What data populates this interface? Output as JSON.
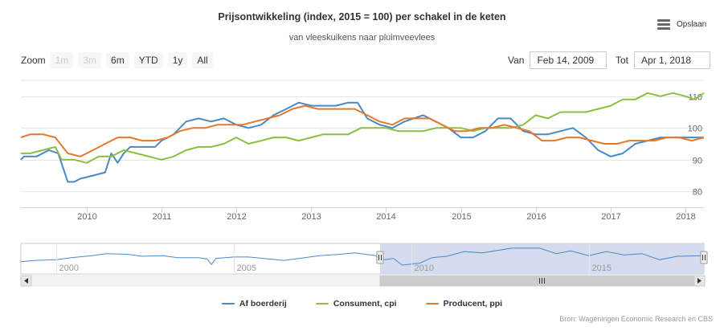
{
  "header": {
    "title": "Prijsontwikkeling (index, 2015 = 100) per schakel in de keten",
    "subtitle": "van vleeskuikens naar pluimveevlees",
    "menu_label": "Opslaan",
    "menu_icon": "hamburger-menu-icon"
  },
  "zoom": {
    "label": "Zoom",
    "buttons": [
      {
        "label": "1m",
        "state": "disabled"
      },
      {
        "label": "3m",
        "state": "disabled"
      },
      {
        "label": "6m",
        "state": "normal"
      },
      {
        "label": "YTD",
        "state": "normal"
      },
      {
        "label": "1y",
        "state": "normal"
      },
      {
        "label": "All",
        "state": "normal"
      }
    ]
  },
  "range": {
    "from_label": "Van",
    "from_value": "Feb 14, 2009",
    "to_label": "Tot",
    "to_value": "Apr 1, 2018"
  },
  "colors": {
    "farm": "#4a89c8",
    "consumer": "#8cbf3f",
    "producer": "#e5792a",
    "navigator_mask": "#ccd6eb",
    "gridline": "#e6e6e6"
  },
  "chart_data": {
    "type": "line",
    "x_start": "2009-02-14",
    "x_end": "2018-04-01",
    "ylim": [
      75,
      115
    ],
    "y_ticks": [
      80,
      90,
      100,
      110
    ],
    "x_ticks": [
      {
        "date": "2010-01-01",
        "label": "2010"
      },
      {
        "date": "2011-01-01",
        "label": "2011"
      },
      {
        "date": "2012-01-01",
        "label": "2012"
      },
      {
        "date": "2013-01-01",
        "label": "2013"
      },
      {
        "date": "2014-01-01",
        "label": "2014"
      },
      {
        "date": "2015-01-01",
        "label": "2015"
      },
      {
        "date": "2016-01-01",
        "label": "2016"
      },
      {
        "date": "2017-01-01",
        "label": "2017"
      },
      {
        "date": "2018-01-01",
        "label": "2018"
      }
    ],
    "grid": true,
    "legend": "bottom-center",
    "series": [
      {
        "name": "Af boerderij",
        "points": [
          [
            "2009-02-14",
            90
          ],
          [
            "2009-03-01",
            91
          ],
          [
            "2009-05-01",
            91
          ],
          [
            "2009-07-01",
            93
          ],
          [
            "2009-08-15",
            92
          ],
          [
            "2009-10-01",
            83
          ],
          [
            "2009-11-01",
            83
          ],
          [
            "2009-12-01",
            84
          ],
          [
            "2010-02-01",
            85
          ],
          [
            "2010-04-01",
            86
          ],
          [
            "2010-05-01",
            92
          ],
          [
            "2010-06-01",
            89
          ],
          [
            "2010-07-01",
            92
          ],
          [
            "2010-08-01",
            94
          ],
          [
            "2010-10-01",
            94
          ],
          [
            "2010-12-01",
            94
          ],
          [
            "2011-01-01",
            96
          ],
          [
            "2011-03-01",
            98
          ],
          [
            "2011-05-01",
            102
          ],
          [
            "2011-07-01",
            103
          ],
          [
            "2011-09-01",
            102
          ],
          [
            "2011-11-01",
            103
          ],
          [
            "2012-01-01",
            101
          ],
          [
            "2012-03-01",
            100
          ],
          [
            "2012-05-01",
            101
          ],
          [
            "2012-07-01",
            104
          ],
          [
            "2012-09-01",
            106
          ],
          [
            "2012-11-01",
            108
          ],
          [
            "2013-01-01",
            107
          ],
          [
            "2013-03-01",
            107
          ],
          [
            "2013-05-01",
            107
          ],
          [
            "2013-07-01",
            108
          ],
          [
            "2013-08-15",
            108
          ],
          [
            "2013-10-01",
            103
          ],
          [
            "2013-12-01",
            101
          ],
          [
            "2014-02-01",
            100
          ],
          [
            "2014-04-01",
            102
          ],
          [
            "2014-07-01",
            104
          ],
          [
            "2014-09-01",
            102
          ],
          [
            "2014-11-01",
            100
          ],
          [
            "2015-01-01",
            97
          ],
          [
            "2015-03-01",
            97
          ],
          [
            "2015-05-01",
            99
          ],
          [
            "2015-07-01",
            103
          ],
          [
            "2015-09-01",
            103
          ],
          [
            "2015-11-01",
            99
          ],
          [
            "2016-01-01",
            98
          ],
          [
            "2016-03-01",
            98
          ],
          [
            "2016-05-01",
            99
          ],
          [
            "2016-07-01",
            100
          ],
          [
            "2016-09-01",
            97
          ],
          [
            "2016-11-01",
            93
          ],
          [
            "2017-01-01",
            91
          ],
          [
            "2017-03-01",
            92
          ],
          [
            "2017-05-01",
            95
          ],
          [
            "2017-07-01",
            96
          ],
          [
            "2017-09-01",
            97
          ],
          [
            "2017-11-01",
            97
          ],
          [
            "2018-01-01",
            97
          ],
          [
            "2018-04-01",
            97
          ]
        ]
      },
      {
        "name": "Consument, cpi",
        "points": [
          [
            "2009-02-14",
            92
          ],
          [
            "2009-04-01",
            92
          ],
          [
            "2009-06-01",
            93
          ],
          [
            "2009-08-01",
            94
          ],
          [
            "2009-09-01",
            90
          ],
          [
            "2009-11-01",
            90
          ],
          [
            "2010-01-01",
            89
          ],
          [
            "2010-03-01",
            91
          ],
          [
            "2010-05-01",
            91
          ],
          [
            "2010-07-01",
            93
          ],
          [
            "2010-09-01",
            92
          ],
          [
            "2010-11-01",
            91
          ],
          [
            "2011-01-01",
            90
          ],
          [
            "2011-03-01",
            91
          ],
          [
            "2011-05-01",
            93
          ],
          [
            "2011-07-01",
            94
          ],
          [
            "2011-09-01",
            94
          ],
          [
            "2011-11-01",
            95
          ],
          [
            "2012-01-01",
            97
          ],
          [
            "2012-03-01",
            95
          ],
          [
            "2012-05-01",
            96
          ],
          [
            "2012-07-01",
            97
          ],
          [
            "2012-09-01",
            97
          ],
          [
            "2012-11-01",
            96
          ],
          [
            "2013-01-01",
            97
          ],
          [
            "2013-03-01",
            98
          ],
          [
            "2013-05-01",
            98
          ],
          [
            "2013-07-01",
            98
          ],
          [
            "2013-09-01",
            100
          ],
          [
            "2013-11-01",
            100
          ],
          [
            "2014-01-01",
            100
          ],
          [
            "2014-03-01",
            99
          ],
          [
            "2014-05-01",
            99
          ],
          [
            "2014-07-01",
            99
          ],
          [
            "2014-09-01",
            100
          ],
          [
            "2014-11-01",
            100
          ],
          [
            "2015-01-01",
            100
          ],
          [
            "2015-03-01",
            99
          ],
          [
            "2015-05-01",
            100
          ],
          [
            "2015-07-01",
            100
          ],
          [
            "2015-09-01",
            100
          ],
          [
            "2015-11-01",
            101
          ],
          [
            "2016-01-01",
            104
          ],
          [
            "2016-03-01",
            103
          ],
          [
            "2016-05-01",
            105
          ],
          [
            "2016-07-01",
            105
          ],
          [
            "2016-09-01",
            105
          ],
          [
            "2016-11-01",
            106
          ],
          [
            "2017-01-01",
            107
          ],
          [
            "2017-03-01",
            109
          ],
          [
            "2017-05-01",
            109
          ],
          [
            "2017-07-01",
            111
          ],
          [
            "2017-09-01",
            110
          ],
          [
            "2017-11-01",
            111
          ],
          [
            "2018-01-01",
            110
          ],
          [
            "2018-02-15",
            109
          ],
          [
            "2018-04-01",
            111
          ]
        ]
      },
      {
        "name": "Producent, ppi",
        "points": [
          [
            "2009-02-14",
            97
          ],
          [
            "2009-04-01",
            98
          ],
          [
            "2009-06-01",
            98
          ],
          [
            "2009-08-01",
            97
          ],
          [
            "2009-10-01",
            92
          ],
          [
            "2009-12-01",
            91
          ],
          [
            "2010-02-01",
            93
          ],
          [
            "2010-04-01",
            95
          ],
          [
            "2010-06-01",
            97
          ],
          [
            "2010-08-01",
            97
          ],
          [
            "2010-10-01",
            96
          ],
          [
            "2010-12-01",
            96
          ],
          [
            "2011-02-01",
            97
          ],
          [
            "2011-04-01",
            99
          ],
          [
            "2011-06-01",
            100
          ],
          [
            "2011-08-01",
            100
          ],
          [
            "2011-10-01",
            101
          ],
          [
            "2011-12-01",
            101
          ],
          [
            "2012-02-01",
            101
          ],
          [
            "2012-04-01",
            102
          ],
          [
            "2012-06-01",
            103
          ],
          [
            "2012-08-01",
            104
          ],
          [
            "2012-10-01",
            106
          ],
          [
            "2012-12-01",
            107
          ],
          [
            "2013-02-01",
            106
          ],
          [
            "2013-04-01",
            106
          ],
          [
            "2013-06-01",
            106
          ],
          [
            "2013-08-01",
            106
          ],
          [
            "2013-10-01",
            104
          ],
          [
            "2013-12-01",
            102
          ],
          [
            "2014-02-01",
            101
          ],
          [
            "2014-04-01",
            103
          ],
          [
            "2014-06-01",
            103
          ],
          [
            "2014-08-01",
            103
          ],
          [
            "2014-10-01",
            101
          ],
          [
            "2014-12-01",
            99
          ],
          [
            "2015-02-01",
            99
          ],
          [
            "2015-04-01",
            100
          ],
          [
            "2015-06-01",
            100
          ],
          [
            "2015-08-01",
            101
          ],
          [
            "2015-10-01",
            100
          ],
          [
            "2015-12-01",
            99
          ],
          [
            "2016-02-01",
            96
          ],
          [
            "2016-04-01",
            96
          ],
          [
            "2016-06-01",
            97
          ],
          [
            "2016-08-01",
            97
          ],
          [
            "2016-10-01",
            96
          ],
          [
            "2016-12-01",
            95
          ],
          [
            "2017-02-01",
            95
          ],
          [
            "2017-04-01",
            96
          ],
          [
            "2017-06-01",
            96
          ],
          [
            "2017-08-01",
            96
          ],
          [
            "2017-10-01",
            97
          ],
          [
            "2017-12-01",
            97
          ],
          [
            "2018-02-01",
            96
          ],
          [
            "2018-04-01",
            97
          ]
        ]
      }
    ],
    "navigator": {
      "x_start": "1999-01-01",
      "x_end": "2018-04-01",
      "selected_from": "2009-02-14",
      "selected_to": "2018-04-01",
      "x_ticks": [
        {
          "date": "2000-01-01",
          "label": "2000"
        },
        {
          "date": "2005-01-01",
          "label": "2005"
        },
        {
          "date": "2010-01-01",
          "label": "2010"
        },
        {
          "date": "2015-01-01",
          "label": "2015"
        }
      ],
      "series_name": "Af boerderij",
      "ylim": [
        70,
        115
      ],
      "points": [
        [
          "1999-01-01",
          88
        ],
        [
          "1999-06-01",
          90
        ],
        [
          "2000-01-01",
          91
        ],
        [
          "2000-06-01",
          94
        ],
        [
          "2001-01-01",
          97
        ],
        [
          "2001-06-01",
          100
        ],
        [
          "2002-01-01",
          99
        ],
        [
          "2002-06-01",
          96
        ],
        [
          "2003-01-01",
          97
        ],
        [
          "2003-06-01",
          94
        ],
        [
          "2004-01-01",
          94
        ],
        [
          "2004-04-01",
          92
        ],
        [
          "2004-05-15",
          84
        ],
        [
          "2004-07-01",
          93
        ],
        [
          "2005-01-01",
          95
        ],
        [
          "2005-06-01",
          95
        ],
        [
          "2006-01-01",
          92
        ],
        [
          "2006-06-01",
          90
        ],
        [
          "2007-01-01",
          94
        ],
        [
          "2007-06-01",
          97
        ],
        [
          "2008-01-01",
          99
        ],
        [
          "2008-06-01",
          101
        ],
        [
          "2009-01-01",
          97
        ],
        [
          "2009-02-14",
          90
        ],
        [
          "2009-07-01",
          93
        ],
        [
          "2009-10-01",
          83
        ],
        [
          "2010-04-01",
          86
        ],
        [
          "2010-08-01",
          94
        ],
        [
          "2011-01-01",
          96
        ],
        [
          "2011-07-01",
          103
        ],
        [
          "2012-01-01",
          101
        ],
        [
          "2012-11-01",
          108
        ],
        [
          "2013-08-15",
          108
        ],
        [
          "2014-02-01",
          100
        ],
        [
          "2014-07-01",
          104
        ],
        [
          "2015-01-01",
          97
        ],
        [
          "2015-07-01",
          103
        ],
        [
          "2016-01-01",
          98
        ],
        [
          "2016-07-01",
          100
        ],
        [
          "2017-01-01",
          91
        ],
        [
          "2017-07-01",
          96
        ],
        [
          "2018-04-01",
          97
        ]
      ]
    }
  },
  "credits": "Bron: Wageningen Economic Research en CBS"
}
